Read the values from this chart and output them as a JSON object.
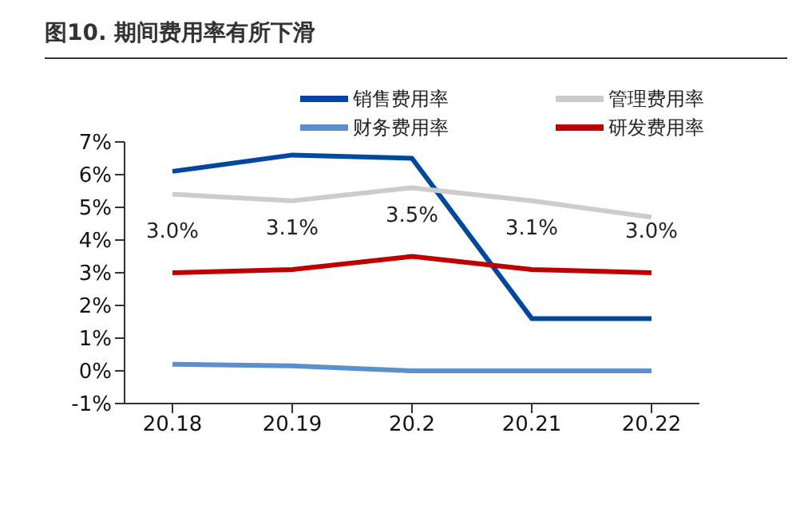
{
  "chart_data": {
    "type": "line",
    "title": "图10. 期间费用率有所下滑",
    "categories": [
      "20.18",
      "20.19",
      "20.2",
      "20.21",
      "20.22"
    ],
    "series": [
      {
        "name": "销售费用率",
        "color": "#0047a0",
        "values": [
          6.1,
          6.6,
          6.5,
          1.6,
          1.6
        ]
      },
      {
        "name": "管理费用率",
        "color": "#cccccc",
        "values": [
          5.4,
          5.2,
          5.6,
          5.2,
          4.7
        ]
      },
      {
        "name": "财务费用率",
        "color": "#5b8fd0",
        "values": [
          0.2,
          0.15,
          0,
          0,
          0
        ]
      },
      {
        "name": "研发费用率",
        "color": "#c00000",
        "values": [
          3.0,
          3.1,
          3.5,
          3.1,
          3.0
        ],
        "value_labels": [
          "3.0%",
          "3.1%",
          "3.5%",
          "3.1%",
          "3.0%"
        ]
      }
    ],
    "ylim": [
      -1,
      7
    ],
    "yticks": [
      {
        "value": -1,
        "label": "-1%"
      },
      {
        "value": 0,
        "label": "0%"
      },
      {
        "value": 1,
        "label": "1%"
      },
      {
        "value": 2,
        "label": "2%"
      },
      {
        "value": 3,
        "label": "3%"
      },
      {
        "value": 4,
        "label": "4%"
      },
      {
        "value": 5,
        "label": "5%"
      },
      {
        "value": 6,
        "label": "6%"
      },
      {
        "value": 7,
        "label": "7%"
      }
    ],
    "grid": false,
    "legend": "top",
    "marker": "none",
    "line_style": "solid"
  }
}
